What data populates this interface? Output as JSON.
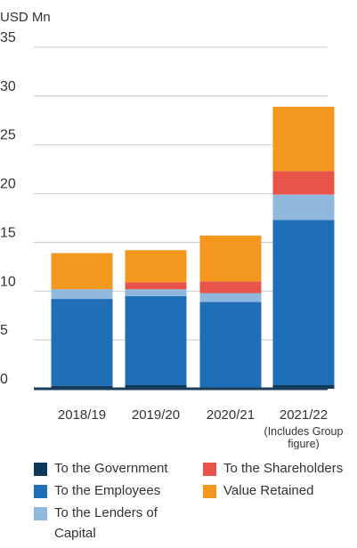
{
  "chart_data": {
    "type": "stacked_bar",
    "y_axis_label": "USD Mn",
    "categories": [
      "2018/19",
      "2019/20",
      "2020/21",
      "2021/22"
    ],
    "category_note": [
      "(Includes Group",
      "figure)"
    ],
    "series": [
      {
        "name": "To the Government",
        "color": "#0d3a5c",
        "values": [
          0.3,
          0.4,
          0.1,
          0.4
        ]
      },
      {
        "name": "To the Employees",
        "color": "#1f6fb8",
        "values": [
          8.9,
          9.1,
          8.8,
          16.9
        ]
      },
      {
        "name": "To the Lenders of Capital",
        "color": "#8fb8dc",
        "values": [
          1.0,
          0.7,
          0.9,
          2.6
        ]
      },
      {
        "name": "To the Shareholders",
        "color": "#e8534a",
        "values": [
          0,
          0.7,
          1.2,
          2.4
        ]
      },
      {
        "name": "Value Retained",
        "color": "#f3971f",
        "values": [
          3.7,
          3.3,
          4.7,
          6.6
        ]
      }
    ],
    "ylim": [
      0,
      35
    ],
    "yticks": [
      0,
      5,
      10,
      15,
      20,
      25,
      30,
      35
    ],
    "grid": true
  }
}
